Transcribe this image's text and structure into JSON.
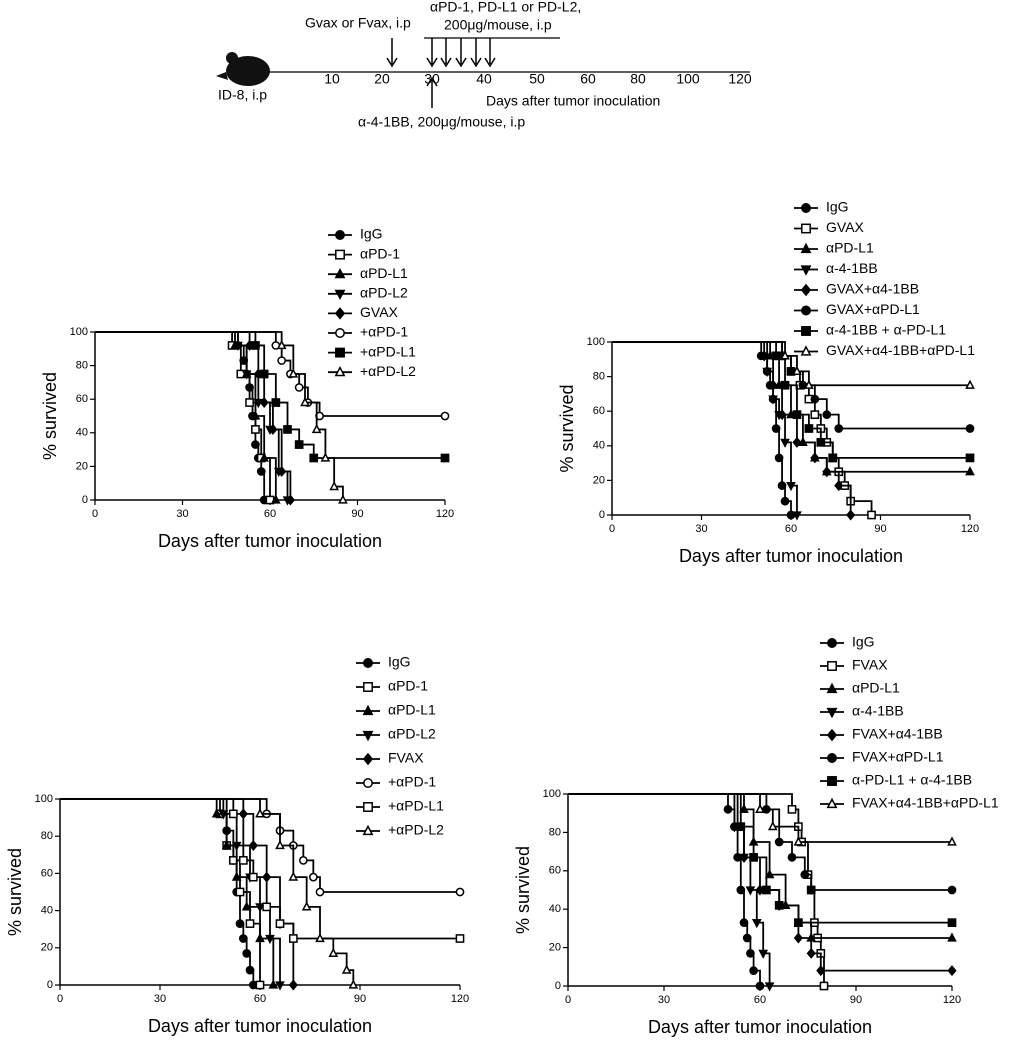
{
  "timeline": {
    "vaccine": "Gvax or Fvax, i.p",
    "checkpoint_line1": "αPD-1, PD-L1 or PD-L2,",
    "checkpoint_line2": "200μg/mouse, i.p",
    "inoculation": "ID-8, i.p",
    "axis_label": "Days after tumor inoculation",
    "agonist": "α-4-1BB, 200μg/mouse, i.p",
    "ticks": [
      10,
      20,
      30,
      40,
      50,
      60,
      80,
      100,
      120
    ]
  },
  "chart_data": [
    {
      "type": "survival",
      "xlabel": "Days after tumor inoculation",
      "ylabel": "% survived",
      "xlim": [
        0,
        120
      ],
      "ylim": [
        0,
        100
      ],
      "xticks": [
        0,
        30,
        60,
        90,
        120
      ],
      "yticks": [
        0,
        20,
        40,
        60,
        80,
        100
      ],
      "series": [
        {
          "name": "IgG",
          "color": "#000000",
          "marker": "circle",
          "x": [
            0,
            49,
            51,
            52,
            53,
            54,
            55,
            56,
            57,
            58
          ],
          "values": [
            100,
            92,
            83,
            75,
            67,
            50,
            33,
            25,
            17,
            0
          ]
        },
        {
          "name": "αPD-1",
          "color": "#000000",
          "marker": "square-open",
          "x": [
            0,
            47,
            50,
            53,
            55,
            57,
            60
          ],
          "values": [
            100,
            92,
            75,
            58,
            42,
            25,
            0
          ]
        },
        {
          "name": "αPD-L1",
          "color": "#000000",
          "marker": "triangle",
          "x": [
            0,
            48,
            52,
            55,
            58,
            62
          ],
          "values": [
            100,
            92,
            75,
            50,
            25,
            0
          ]
        },
        {
          "name": "αPD-L2",
          "color": "#000000",
          "marker": "triangle-down",
          "x": [
            0,
            49,
            52,
            56,
            60,
            63,
            66
          ],
          "values": [
            100,
            92,
            75,
            58,
            42,
            17,
            0
          ]
        },
        {
          "name": "GVAX",
          "color": "#000000",
          "marker": "diamond",
          "x": [
            0,
            53,
            56,
            58,
            61,
            64,
            67
          ],
          "values": [
            100,
            92,
            75,
            58,
            42,
            17,
            0
          ]
        },
        {
          "name": "+αPD-1",
          "color": "#000000",
          "marker": "circle-open",
          "x": [
            0,
            62,
            64,
            67,
            70,
            73,
            77,
            120
          ],
          "values": [
            100,
            92,
            83,
            75,
            67,
            58,
            50,
            50
          ]
        },
        {
          "name": "+αPD-L1",
          "color": "#000000",
          "marker": "square",
          "x": [
            0,
            55,
            58,
            62,
            66,
            70,
            75,
            120
          ],
          "values": [
            100,
            92,
            75,
            58,
            42,
            33,
            25,
            25
          ]
        },
        {
          "name": "+αPD-L2",
          "color": "#000000",
          "marker": "triangle-open",
          "x": [
            0,
            64,
            68,
            72,
            76,
            79,
            82,
            85
          ],
          "values": [
            100,
            92,
            75,
            58,
            42,
            25,
            8,
            0
          ]
        }
      ]
    },
    {
      "type": "survival",
      "xlabel": "Days after tumor inoculation",
      "ylabel": "% survived",
      "xlim": [
        0,
        120
      ],
      "ylim": [
        0,
        100
      ],
      "xticks": [
        0,
        30,
        60,
        90,
        120
      ],
      "yticks": [
        0,
        20,
        40,
        60,
        80,
        100
      ],
      "series": [
        {
          "name": "IgG",
          "color": "#000000",
          "marker": "circle",
          "x": [
            0,
            50,
            52,
            53,
            54,
            55,
            56,
            57,
            58,
            60
          ],
          "values": [
            100,
            92,
            83,
            75,
            67,
            50,
            33,
            17,
            8,
            0
          ]
        },
        {
          "name": "GVAX",
          "color": "#000000",
          "marker": "square-open",
          "x": [
            0,
            57,
            60,
            63,
            66,
            68,
            70,
            72,
            74,
            76,
            78,
            80,
            87
          ],
          "values": [
            100,
            92,
            83,
            75,
            67,
            58,
            50,
            42,
            33,
            25,
            17,
            8,
            0
          ]
        },
        {
          "name": "αPD-L1",
          "color": "#000000",
          "marker": "triangle",
          "x": [
            0,
            53,
            56,
            60,
            64,
            68,
            72,
            120
          ],
          "values": [
            100,
            92,
            75,
            58,
            42,
            33,
            25,
            25
          ]
        },
        {
          "name": "α-4-1BB",
          "color": "#000000",
          "marker": "triangle-down",
          "x": [
            0,
            52,
            54,
            56,
            58,
            60,
            62
          ],
          "values": [
            100,
            83,
            67,
            58,
            42,
            17,
            0
          ]
        },
        {
          "name": "GVAX+α4-1BB",
          "color": "#000000",
          "marker": "diamond",
          "x": [
            0,
            51,
            54,
            57,
            62,
            68,
            72,
            76,
            80
          ],
          "values": [
            100,
            92,
            75,
            58,
            42,
            33,
            25,
            17,
            0
          ]
        },
        {
          "name": "GVAX+αPD-L1",
          "color": "#000000",
          "marker": "circle",
          "x": [
            0,
            57,
            60,
            64,
            68,
            72,
            76,
            120
          ],
          "values": [
            100,
            92,
            83,
            75,
            67,
            58,
            50,
            50
          ]
        },
        {
          "name": "α-4-1BB + α-PD-L1",
          "color": "#000000",
          "marker": "square",
          "x": [
            0,
            55,
            58,
            62,
            66,
            70,
            74,
            120
          ],
          "values": [
            100,
            92,
            75,
            58,
            50,
            42,
            33,
            33
          ]
        },
        {
          "name": "GVAX+α4-1BB+αPD-L1",
          "color": "#000000",
          "marker": "triangle-open",
          "x": [
            0,
            58,
            62,
            66,
            120
          ],
          "values": [
            100,
            92,
            83,
            75,
            75
          ]
        }
      ]
    },
    {
      "type": "survival",
      "xlabel": "Days after tumor inoculation",
      "ylabel": "% survived",
      "xlim": [
        0,
        120
      ],
      "ylim": [
        0,
        100
      ],
      "xticks": [
        0,
        30,
        60,
        90,
        120
      ],
      "yticks": [
        0,
        20,
        40,
        60,
        80,
        100
      ],
      "series": [
        {
          "name": "IgG",
          "color": "#000000",
          "marker": "circle",
          "x": [
            0,
            50,
            52,
            53,
            54,
            55,
            56,
            57,
            58
          ],
          "values": [
            100,
            83,
            67,
            50,
            33,
            25,
            17,
            8,
            0
          ]
        },
        {
          "name": "αPD-1",
          "color": "#000000",
          "marker": "square-open",
          "x": [
            0,
            48,
            50,
            52,
            54,
            57,
            60
          ],
          "values": [
            100,
            92,
            75,
            67,
            50,
            33,
            0
          ]
        },
        {
          "name": "αPD-L1",
          "color": "#000000",
          "marker": "triangle",
          "x": [
            0,
            47,
            50,
            53,
            56,
            60,
            64
          ],
          "values": [
            100,
            92,
            75,
            58,
            42,
            25,
            0
          ]
        },
        {
          "name": "αPD-L2",
          "color": "#000000",
          "marker": "triangle-down",
          "x": [
            0,
            49,
            53,
            57,
            60,
            63,
            66
          ],
          "values": [
            100,
            92,
            75,
            58,
            42,
            25,
            0
          ]
        },
        {
          "name": "FVAX",
          "color": "#000000",
          "marker": "diamond",
          "x": [
            0,
            55,
            58,
            62,
            66,
            70
          ],
          "values": [
            100,
            92,
            75,
            58,
            33,
            0
          ]
        },
        {
          "name": "+αPD-1",
          "color": "#000000",
          "marker": "circle-open",
          "x": [
            0,
            62,
            66,
            70,
            73,
            76,
            78,
            120
          ],
          "values": [
            100,
            92,
            83,
            75,
            67,
            58,
            50,
            50
          ]
        },
        {
          "name": "+αPD-L1",
          "color": "#000000",
          "marker": "square-open",
          "x": [
            0,
            52,
            55,
            58,
            62,
            66,
            70,
            120
          ],
          "values": [
            100,
            92,
            67,
            58,
            42,
            33,
            25,
            25
          ]
        },
        {
          "name": "+αPD-L2",
          "color": "#000000",
          "marker": "triangle-open",
          "x": [
            0,
            60,
            66,
            70,
            74,
            78,
            82,
            86,
            88
          ],
          "values": [
            100,
            92,
            75,
            58,
            42,
            25,
            17,
            8,
            0
          ]
        }
      ]
    },
    {
      "type": "survival",
      "xlabel": "Days after tumor inoculation",
      "ylabel": "% survived",
      "xlim": [
        0,
        120
      ],
      "ylim": [
        0,
        100
      ],
      "xticks": [
        0,
        30,
        60,
        90,
        120
      ],
      "yticks": [
        0,
        20,
        40,
        60,
        80,
        100
      ],
      "series": [
        {
          "name": "IgG",
          "color": "#000000",
          "marker": "circle",
          "x": [
            0,
            50,
            52,
            53,
            54,
            55,
            56,
            57,
            58,
            60
          ],
          "values": [
            100,
            92,
            83,
            67,
            50,
            33,
            25,
            17,
            8,
            0
          ]
        },
        {
          "name": "FVAX",
          "color": "#000000",
          "marker": "square-open",
          "x": [
            0,
            70,
            72,
            73,
            75,
            76,
            77,
            78,
            79,
            80
          ],
          "values": [
            100,
            92,
            83,
            75,
            58,
            50,
            33,
            25,
            17,
            0
          ]
        },
        {
          "name": "αPD-L1",
          "color": "#000000",
          "marker": "triangle",
          "x": [
            0,
            55,
            58,
            63,
            68,
            72,
            76,
            120
          ],
          "values": [
            100,
            92,
            75,
            58,
            42,
            33,
            25,
            25
          ]
        },
        {
          "name": "α-4-1BB",
          "color": "#000000",
          "marker": "triangle-down",
          "x": [
            0,
            53,
            55,
            57,
            59,
            61,
            63
          ],
          "values": [
            100,
            83,
            67,
            50,
            33,
            17,
            0
          ]
        },
        {
          "name": "FVAX+α4-1BB",
          "color": "#000000",
          "marker": "diamond",
          "x": [
            0,
            52,
            55,
            60,
            66,
            72,
            76,
            79,
            120
          ],
          "values": [
            100,
            83,
            67,
            50,
            42,
            25,
            17,
            8,
            8
          ]
        },
        {
          "name": "FVAX+αPD-L1",
          "color": "#000000",
          "marker": "circle",
          "x": [
            0,
            62,
            66,
            70,
            74,
            76,
            120
          ],
          "values": [
            100,
            92,
            75,
            67,
            58,
            50,
            50
          ]
        },
        {
          "name": "α-PD-L1 + α-4-1BB",
          "color": "#000000",
          "marker": "square",
          "x": [
            0,
            54,
            58,
            62,
            66,
            72,
            120
          ],
          "values": [
            100,
            83,
            67,
            50,
            42,
            33,
            33
          ]
        },
        {
          "name": "FVAX+α4-1BB+αPD-L1",
          "color": "#000000",
          "marker": "triangle-open",
          "x": [
            0,
            60,
            64,
            72,
            120
          ],
          "values": [
            100,
            92,
            83,
            75,
            75
          ]
        }
      ]
    }
  ]
}
